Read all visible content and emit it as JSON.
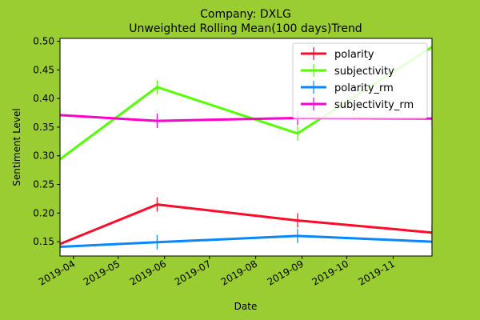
{
  "chart_data": {
    "type": "line",
    "title_line1": "Company: DXLG",
    "title_line2": "Unweighted Rolling Mean(100 days)Trend",
    "xlabel": "Date",
    "ylabel": "Sentiment Level",
    "x": [
      "2019-03-23",
      "2019-05-27",
      "2019-08-29",
      "2019-11-27"
    ],
    "xlim": [
      "2019-03-23",
      "2019-11-27"
    ],
    "ylim": [
      0.125,
      0.505
    ],
    "x_ticks": [
      "2019-04-01",
      "2019-05-01",
      "2019-06-01",
      "2019-07-01",
      "2019-08-01",
      "2019-09-01",
      "2019-10-01",
      "2019-11-01"
    ],
    "x_tick_labels": [
      "2019-04",
      "2019-05",
      "2019-06",
      "2019-07",
      "2019-08",
      "2019-09",
      "2019-10",
      "2019-11"
    ],
    "y_ticks": [
      0.15,
      0.2,
      0.25,
      0.3,
      0.35,
      0.4,
      0.45,
      0.5
    ],
    "y_tick_labels": [
      "0.15",
      "0.20",
      "0.25",
      "0.30",
      "0.35",
      "0.40",
      "0.45",
      "0.50"
    ],
    "grid": false,
    "legend_position": "top-right",
    "series": [
      {
        "name": "polarity",
        "color": "#ff0a2a",
        "values": [
          0.146,
          0.215,
          0.187,
          0.166
        ]
      },
      {
        "name": "subjectivity",
        "color": "#55ff00",
        "values": [
          0.294,
          0.42,
          0.339,
          0.49
        ]
      },
      {
        "name": "polarity_rm",
        "color": "#0a87ff",
        "values": [
          0.141,
          0.149,
          0.16,
          0.15
        ]
      },
      {
        "name": "subjectivity_rm",
        "color": "#ff00cc",
        "values": [
          0.371,
          0.361,
          0.366,
          0.365
        ]
      }
    ]
  }
}
